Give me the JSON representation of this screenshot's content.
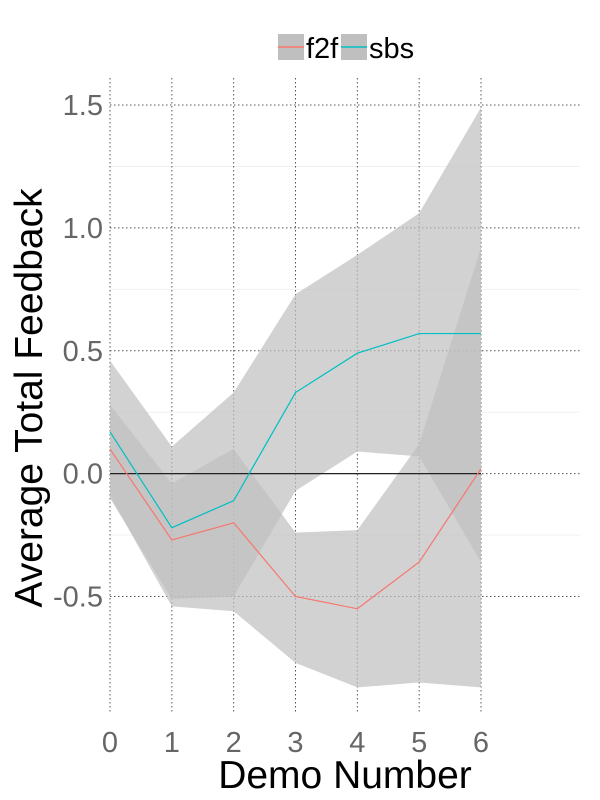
{
  "chart_data": {
    "type": "line",
    "x": [
      0,
      1,
      2,
      3,
      4,
      5,
      6
    ],
    "xticks": [
      "0",
      "1",
      "2",
      "3",
      "4",
      "5",
      "6"
    ],
    "yticks": [
      {
        "value": -0.5,
        "label": "-0.5"
      },
      {
        "value": 0.0,
        "label": "0.0"
      },
      {
        "value": 0.5,
        "label": "0.5"
      },
      {
        "value": 1.0,
        "label": "1.0"
      },
      {
        "value": 1.5,
        "label": "1.5"
      }
    ],
    "xlim": [
      0,
      6
    ],
    "ylim": [
      -0.97,
      1.61
    ],
    "xlabel": "Demo Number",
    "ylabel": "Average Total Feedback",
    "reference_line_y": 0,
    "grid": true,
    "legend_position": "top-center",
    "band_color": "#bfbfbf",
    "series": [
      {
        "name": "f2f",
        "color": "#F8766D",
        "values": [
          0.1,
          -0.27,
          -0.2,
          -0.5,
          -0.55,
          -0.36,
          0.02
        ],
        "lower": [
          -0.09,
          -0.54,
          -0.56,
          -0.77,
          -0.87,
          -0.85,
          -0.87
        ],
        "upper": [
          0.28,
          -0.04,
          0.1,
          -0.24,
          -0.23,
          0.12,
          0.92
        ]
      },
      {
        "name": "sbs",
        "color": "#00BFC4",
        "values": [
          0.17,
          -0.22,
          -0.11,
          0.33,
          0.49,
          0.57,
          0.57
        ],
        "lower": [
          -0.1,
          -0.51,
          -0.5,
          -0.07,
          0.09,
          0.07,
          -0.36
        ],
        "upper": [
          0.46,
          0.11,
          0.33,
          0.73,
          0.89,
          1.06,
          1.49
        ]
      }
    ]
  }
}
